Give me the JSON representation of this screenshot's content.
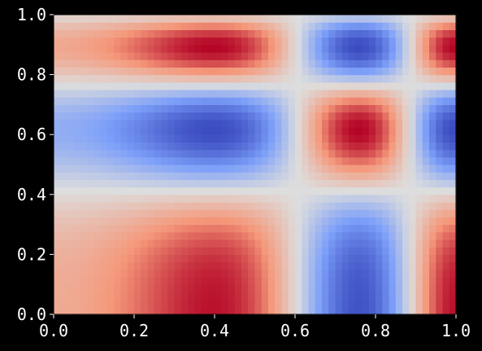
{
  "chart_data": {
    "type": "heatmap",
    "title": "",
    "xlabel": "",
    "ylabel": "",
    "xlim": [
      0.0,
      1.0
    ],
    "ylim": [
      0.0,
      1.0
    ],
    "xticks": [
      "0.0",
      "0.2",
      "0.4",
      "0.6",
      "0.8",
      "1.0"
    ],
    "yticks": [
      "0.0",
      "0.2",
      "0.4",
      "0.6",
      "0.8",
      "1.0"
    ],
    "colormap": "coolwarm",
    "grid_resolution": [
      60,
      40
    ],
    "function": "sin(8*x^2) * cos(8*y^2)-like interference pattern",
    "background_color": "#000000",
    "text_color": "#ffffff",
    "colors": {
      "cool": "#3b4cc0",
      "neutral": "#dddddd",
      "warm": "#b40426"
    }
  }
}
